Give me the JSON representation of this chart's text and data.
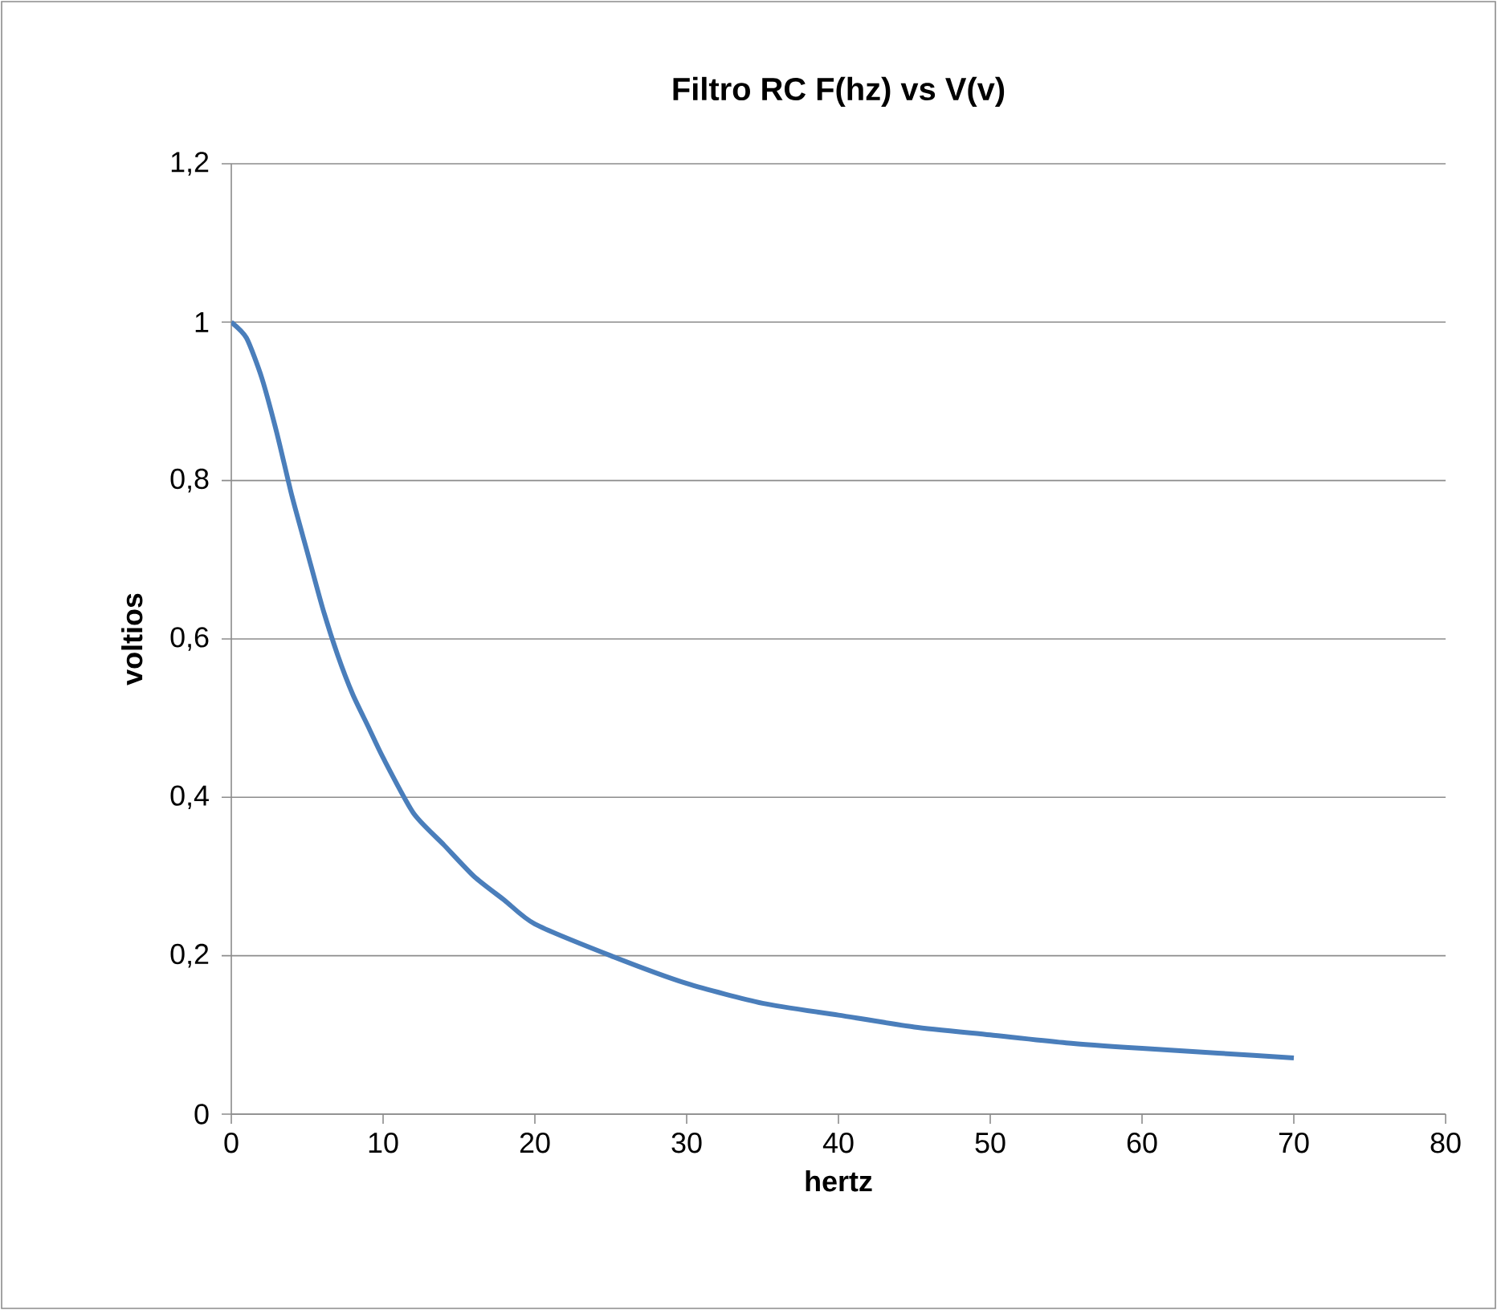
{
  "chart_data": {
    "type": "line",
    "title": "Filtro RC F(hz) vs V(v)",
    "xlabel": "hertz",
    "ylabel": "voltios",
    "x": [
      0,
      1,
      2,
      3,
      4,
      5,
      6,
      7,
      8,
      9,
      10,
      12,
      14,
      16,
      18,
      20,
      25,
      30,
      35,
      40,
      45,
      50,
      55,
      60,
      65,
      70
    ],
    "series": [
      {
        "color": "#4a7ebb",
        "values": [
          1.0,
          0.98,
          0.93,
          0.86,
          0.78,
          0.71,
          0.64,
          0.58,
          0.53,
          0.49,
          0.45,
          0.38,
          0.34,
          0.3,
          0.27,
          0.24,
          0.2,
          0.165,
          0.14,
          0.125,
          0.11,
          0.1,
          0.09,
          0.083,
          0.077,
          0.071
        ]
      }
    ],
    "xlim": [
      0,
      80
    ],
    "xticks": [
      0,
      10,
      20,
      30,
      40,
      50,
      60,
      70,
      80
    ],
    "ylim": [
      0,
      1.2
    ],
    "yticks": [
      0,
      {
        "value": 0.2,
        "label": "0,2"
      },
      {
        "value": 0.4,
        "label": "0,4"
      },
      {
        "value": 0.6,
        "label": "0,6"
      },
      {
        "value": 0.8,
        "label": "0,8"
      },
      1,
      {
        "value": 1.2,
        "label": "1,2"
      }
    ],
    "grid": "y",
    "marker": "none",
    "line_style": "solid"
  }
}
